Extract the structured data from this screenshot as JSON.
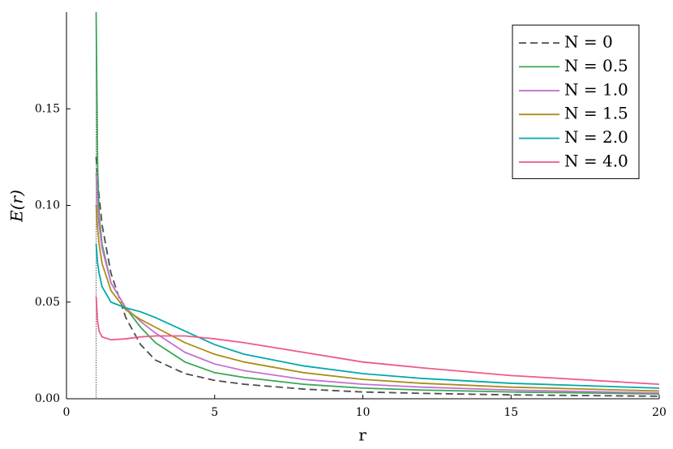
{
  "chart_data": {
    "type": "line",
    "x_label": "r",
    "y_label": "E(r)",
    "x": [
      1,
      1.05,
      1.1,
      1.2,
      1.5,
      2,
      2.5,
      3,
      4,
      5,
      6,
      8,
      10,
      12,
      15,
      20
    ],
    "series": [
      {
        "name": "N = 0",
        "color": "#4d4d4d",
        "style": "dashed",
        "values": [
          0.125,
          0.115,
          0.105,
          0.09,
          0.065,
          0.042,
          0.028,
          0.02,
          0.013,
          0.0095,
          0.0075,
          0.005,
          0.0035,
          0.0028,
          0.002,
          0.0013
        ]
      },
      {
        "name": "N = 0.5",
        "color": "#3aa655",
        "style": "solid",
        "values": [
          0.2,
          0.12,
          0.095,
          0.08,
          0.06,
          0.047,
          0.037,
          0.029,
          0.019,
          0.0135,
          0.011,
          0.0075,
          0.0055,
          0.0045,
          0.0035,
          0.0025
        ]
      },
      {
        "name": "N = 1.0",
        "color": "#c271d2",
        "style": "solid",
        "values": [
          0.117,
          0.1,
          0.09,
          0.078,
          0.06,
          0.047,
          0.04,
          0.034,
          0.024,
          0.018,
          0.0145,
          0.01,
          0.0075,
          0.006,
          0.0045,
          0.003
        ]
      },
      {
        "name": "N = 1.5",
        "color": "#ac8d18",
        "style": "solid",
        "values": [
          0.1,
          0.088,
          0.08,
          0.07,
          0.056,
          0.046,
          0.041,
          0.037,
          0.029,
          0.023,
          0.019,
          0.0135,
          0.01,
          0.008,
          0.006,
          0.004
        ]
      },
      {
        "name": "N = 2.0",
        "color": "#00a9ad",
        "style": "solid",
        "values": [
          0.08,
          0.07,
          0.065,
          0.058,
          0.05,
          0.047,
          0.045,
          0.042,
          0.035,
          0.028,
          0.023,
          0.017,
          0.013,
          0.0105,
          0.008,
          0.0055
        ]
      },
      {
        "name": "N = 4.0",
        "color": "#ee5a8a",
        "style": "solid",
        "values": [
          0.053,
          0.04,
          0.035,
          0.032,
          0.0305,
          0.031,
          0.032,
          0.0325,
          0.0325,
          0.031,
          0.029,
          0.024,
          0.019,
          0.016,
          0.012,
          0.0075
        ]
      }
    ],
    "vline": 1,
    "xlim": [
      0,
      20
    ],
    "xticks": [
      0,
      5,
      10,
      15,
      20
    ],
    "ylim": [
      0,
      0.2
    ],
    "yticks": [
      {
        "value": 0,
        "label": "0.00"
      },
      {
        "value": 0.05,
        "label": "0.05"
      },
      {
        "value": 0.1,
        "label": "0.10"
      },
      {
        "value": 0.15,
        "label": "0.15"
      }
    ],
    "legend": "top right"
  }
}
